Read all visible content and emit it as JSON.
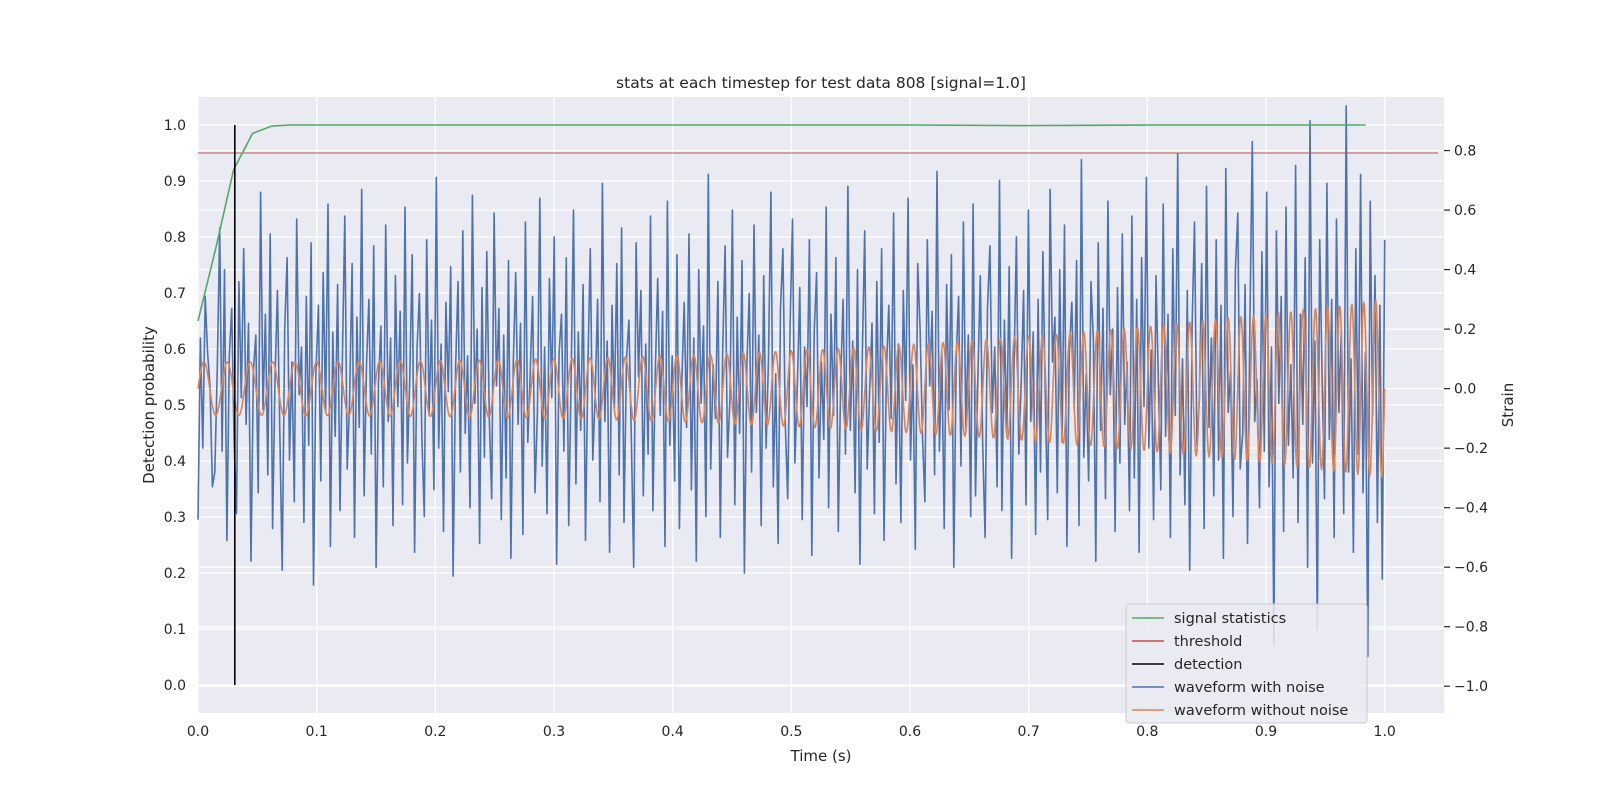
{
  "chart_data": {
    "type": "line",
    "title": "stats at each timestep for test data 808 [signal=1.0]",
    "xlabel": "Time (s)",
    "ylabel_left": "Detection probability",
    "ylabel_right": "Strain",
    "xlim": [
      0.0,
      1.05
    ],
    "ylim_left": [
      -0.05,
      1.05
    ],
    "ylim_right": [
      -1.09,
      0.98
    ],
    "x_ticks": [
      0.0,
      0.1,
      0.2,
      0.3,
      0.4,
      0.5,
      0.6,
      0.7,
      0.8,
      0.9,
      1.0
    ],
    "x_tick_labels": [
      "0.0",
      "0.1",
      "0.2",
      "0.3",
      "0.4",
      "0.5",
      "0.6",
      "0.7",
      "0.8",
      "0.9",
      "1.0"
    ],
    "y_left_ticks": [
      0.0,
      0.1,
      0.2,
      0.3,
      0.4,
      0.5,
      0.6,
      0.7,
      0.8,
      0.9,
      1.0
    ],
    "y_left_tick_labels": [
      "0.0",
      "0.1",
      "0.2",
      "0.3",
      "0.4",
      "0.5",
      "0.6",
      "0.7",
      "0.8",
      "0.9",
      "1.0"
    ],
    "y_right_ticks": [
      -1.0,
      -0.8,
      -0.6,
      -0.4,
      -0.2,
      0.0,
      0.2,
      0.4,
      0.6,
      0.8
    ],
    "y_right_tick_labels": [
      "−1.0",
      "−0.8",
      "−0.6",
      "−0.4",
      "−0.2",
      "0.0",
      "0.2",
      "0.4",
      "0.6",
      "0.8"
    ],
    "grid": true,
    "legend_position": "lower-right",
    "series": [
      {
        "name": "signal statistics",
        "axis": "left",
        "color": "#55a868",
        "x": [
          0.0,
          0.015,
          0.03,
          0.046,
          0.062,
          0.078,
          0.1,
          0.2,
          0.3,
          0.4,
          0.5,
          0.6,
          0.7,
          0.8,
          0.9,
          0.984
        ],
        "y": [
          0.65,
          0.78,
          0.92,
          0.985,
          0.998,
          1.0,
          1.0,
          1.0,
          1.0,
          1.0,
          1.0,
          1.0,
          0.999,
          1.0,
          1.0,
          1.0
        ]
      },
      {
        "name": "threshold",
        "axis": "left",
        "color": "#c44e52",
        "x": [
          0.0,
          1.045
        ],
        "y": [
          0.95,
          0.95
        ]
      },
      {
        "name": "detection",
        "axis": "left",
        "color": "#000000",
        "x": [
          0.031,
          0.031
        ],
        "y": [
          0.0,
          1.0
        ]
      },
      {
        "name": "waveform with noise",
        "axis": "right",
        "color": "#4c72b0",
        "x_range": [
          0.0,
          1.0
        ],
        "y": [
          -0.44,
          0.17,
          -0.2,
          0.31,
          0.12,
          0.01,
          -0.33,
          -0.28,
          0.07,
          0.54,
          -0.21,
          0.4,
          -0.51,
          0.11,
          0.27,
          -0.18,
          -0.42,
          0.36,
          -0.03,
          0.47,
          -0.12,
          0.22,
          -0.58,
          0.06,
          0.18,
          -0.35,
          0.66,
          -0.07,
          0.25,
          -0.29,
          0.52,
          -0.47,
          0.03,
          0.33,
          -0.14,
          -0.61,
          0.2,
          0.44,
          -0.24,
          0.09,
          -0.38,
          0.57,
          -0.02,
          0.14,
          -0.45,
          0.31,
          -0.19,
          0.49,
          -0.66,
          0.05,
          0.28,
          -0.31,
          0.39,
          -0.08,
          0.62,
          -0.53,
          0.19,
          -0.16,
          0.35,
          -0.41,
          0.1,
          0.58,
          -0.27,
          -0.04,
          0.42,
          -0.5,
          0.24,
          -0.13,
          0.67,
          -0.36,
          0.08,
          0.3,
          -0.22,
          0.48,
          -0.6,
          0.02,
          0.21,
          -0.33,
          0.55,
          -0.11,
          0.17,
          -0.46,
          0.38,
          -0.06,
          0.26,
          -0.39,
          0.61,
          -0.25,
          0.04,
          0.45,
          -0.55,
          0.13,
          0.32,
          -0.17,
          -0.43,
          0.5,
          -0.09,
          0.23,
          -0.34,
          0.71,
          -0.2,
          0.15,
          -0.48,
          0.29,
          -0.01,
          0.41,
          -0.63,
          0.07,
          0.36,
          -0.28,
          0.53,
          -0.15,
          0.11,
          -0.4,
          0.65,
          -0.05,
          0.2,
          -0.52,
          0.34,
          -0.23,
          0.46,
          -0.1,
          -0.37,
          0.59,
          0.01,
          0.27,
          -0.44,
          0.18,
          -0.3,
          0.43,
          -0.57,
          0.09,
          0.39,
          -0.12,
          0.22,
          -0.49,
          0.56,
          -0.18,
          0.05,
          0.31,
          -0.35,
          -0.08,
          0.64,
          -0.26,
          0.14,
          -0.42,
          0.37,
          -0.03,
          0.51,
          -0.59,
          0.12,
          0.25,
          -0.21,
          0.44,
          -0.46,
          0.03,
          0.6,
          -0.32,
          0.19,
          -0.14,
          0.35,
          -0.51,
          0.08,
          0.47,
          -0.24,
          -0.02,
          0.3,
          -0.38,
          0.69,
          -0.11,
          0.16,
          -0.55,
          0.28,
          -0.07,
          0.42,
          -0.29,
          0.54,
          -0.45,
          0.1,
          0.23,
          -0.16,
          -0.6,
          0.49,
          0.04,
          0.33,
          -0.36,
          0.15,
          -0.22,
          0.58,
          -0.41,
          0.06,
          0.37,
          -0.09,
          0.26,
          -0.53,
          0.63,
          -0.19,
          0.11,
          -0.31,
          0.45,
          -0.47,
          0.02,
          0.29,
          -0.13,
          0.52,
          -0.34,
          0.17,
          -0.58,
          0.4,
          -0.05,
          0.21,
          -0.43,
          0.72,
          -0.27,
          0.08,
          -0.1,
          0.36,
          -0.5,
          0.13,
          0.48,
          -0.23,
          -0.03,
          0.6,
          -0.39,
          0.24,
          -0.15,
          0.43,
          -0.62,
          0.07,
          0.32,
          -0.28,
          0.55,
          -0.08,
          0.18,
          -0.46,
          0.38,
          -0.2,
          0.1,
          0.66,
          -0.33,
          0.05,
          -0.52,
          0.27,
          0.47,
          -0.12,
          -0.37,
          0.21,
          0.57,
          -0.25,
          0.02,
          0.34,
          -0.44,
          0.14,
          -0.06,
          0.5,
          -0.56,
          0.19,
          0.39,
          -0.3,
          0.09,
          -0.17,
          0.61,
          -0.4,
          0.25,
          -0.09,
          0.44,
          -0.48,
          0.03,
          0.3,
          -0.22,
          0.68,
          -0.14,
          0.16,
          -0.35,
          0.4,
          -0.59,
          0.11,
          0.53,
          -0.27,
          -0.01,
          0.22,
          -0.42,
          0.36,
          -0.18,
          0.47,
          -0.51,
          0.06,
          0.28,
          -0.1,
          0.59,
          -0.32,
          0.15,
          -0.45,
          0.33,
          -0.04,
          0.64,
          -0.24,
          0.08,
          -0.54,
          0.42,
          0.2,
          -0.16,
          -0.38,
          0.5,
          0.01,
          0.26,
          -0.29,
          0.73,
          -0.21,
          0.12,
          -0.47,
          0.35,
          -0.07,
          0.45,
          -0.6,
          0.1,
          0.31,
          -0.26,
          0.56,
          -0.13,
          0.18,
          -0.43,
          0.62,
          -0.36,
          0.04,
          0.38,
          -0.19,
          -0.5,
          0.27,
          0.48,
          -0.08,
          0.14,
          -0.33,
          0.7,
          -0.41,
          0.23,
          -0.15,
          0.41,
          -0.57,
          0.07,
          0.51,
          -0.22,
          0.02,
          0.33,
          -0.39,
          0.6,
          -0.11,
          0.19,
          -0.49,
          0.3,
          -0.28,
          0.46,
          -0.03,
          -0.44,
          0.67,
          0.09,
          0.24,
          -0.35,
          0.4,
          -0.18,
          0.55,
          -0.53,
          0.12,
          0.29,
          -0.07,
          0.43,
          -0.46,
          0.77,
          -0.23,
          0.05,
          -0.31,
          0.36,
          0.16,
          -0.58,
          0.49,
          -0.14,
          0.27,
          -0.37,
          0.63,
          -0.02,
          0.2,
          -0.48,
          0.34,
          -0.25,
          0.52,
          -0.12,
          0.09,
          -0.41,
          0.58,
          -0.3,
          0.3,
          -0.55,
          0.44,
          -0.06,
          0.71,
          -0.2,
          0.13,
          -0.44,
          0.38,
          0.02,
          -0.34,
          0.62,
          -0.16,
          0.25,
          -0.5,
          0.47,
          -0.09,
          0.79,
          -0.29,
          0.1,
          -0.39,
          0.33,
          -0.61,
          0.21,
          0.56,
          -0.19,
          -0.04,
          0.42,
          -0.47,
          0.68,
          -0.13,
          0.17,
          -0.36,
          0.5,
          -0.24,
          0.28,
          -0.57,
          0.74,
          -0.08,
          0.06,
          -0.43,
          0.4,
          0.59,
          -0.27,
          -0.15,
          0.35,
          -0.52,
          0.22,
          0.83,
          -0.11,
          0.03,
          -0.4,
          0.46,
          -0.21,
          0.66,
          -0.33,
          0.14,
          -0.86,
          0.53,
          -0.05,
          0.31,
          -0.48,
          0.61,
          -0.19,
          0.08,
          -0.3,
          0.75,
          -0.45,
          0.25,
          -0.12,
          0.44,
          -0.6,
          0.9,
          -0.25,
          0.16,
          -0.81,
          0.5,
          0.04,
          -0.37,
          0.69,
          -0.17,
          0.3,
          -0.5,
          0.57,
          -0.08,
          0.2,
          -0.42,
          0.95,
          -0.28,
          0.1,
          -0.55,
          0.47,
          -0.22,
          0.72,
          -0.35,
          0.12,
          -0.9,
          0.63,
          -0.09,
          0.38,
          -0.45,
          0.28,
          -0.64,
          0.5
        ]
      },
      {
        "name": "waveform without noise",
        "axis": "right",
        "color": "#dd8452",
        "x_range": [
          0.0,
          1.0
        ],
        "cycles": 75,
        "amplitude_start": 0.09,
        "amplitude_end": 0.3,
        "chirp": 0.5
      }
    ]
  }
}
